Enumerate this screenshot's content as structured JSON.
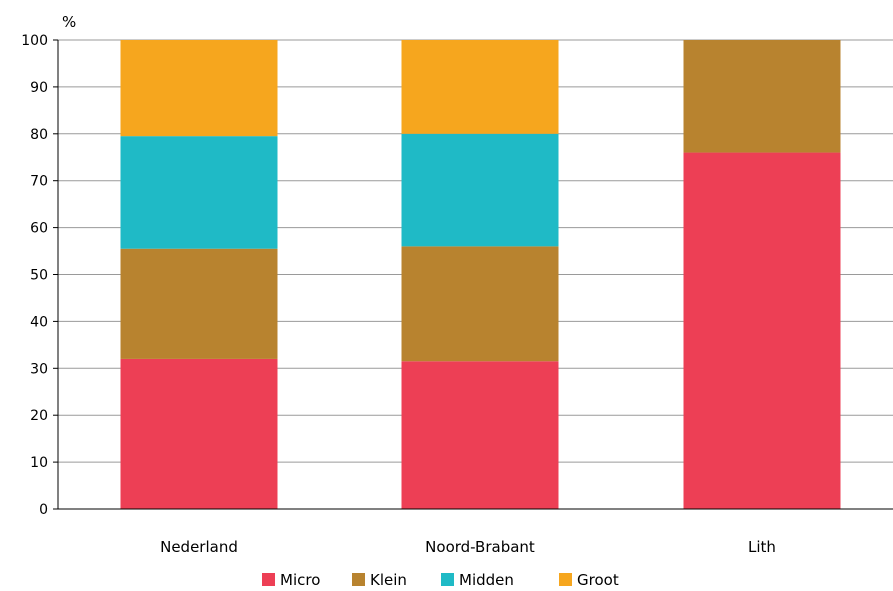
{
  "chart_data": {
    "type": "bar",
    "stacked": true,
    "unit_label": "%",
    "categories": [
      "Nederland",
      "Noord-Brabant",
      "Lith"
    ],
    "series": [
      {
        "name": "Micro",
        "color": "#ED3F55",
        "values": [
          32,
          31.5,
          76
        ]
      },
      {
        "name": "Klein",
        "color": "#B8832F",
        "values": [
          23.5,
          24.5,
          24
        ]
      },
      {
        "name": "Midden",
        "color": "#1FBAC6",
        "values": [
          24,
          24,
          0
        ]
      },
      {
        "name": "Groot",
        "color": "#F6A61E",
        "values": [
          20.5,
          20,
          0
        ]
      }
    ],
    "ylim": [
      0,
      100
    ],
    "yticks": [
      0,
      10,
      20,
      30,
      40,
      50,
      60,
      70,
      80,
      90,
      100
    ],
    "grid": true,
    "legend_position": "bottom"
  }
}
